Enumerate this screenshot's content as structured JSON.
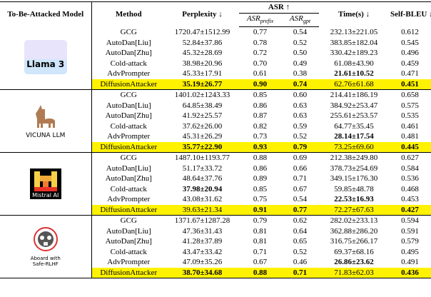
{
  "header": {
    "model": "To-Be-Attacked Model",
    "method": "Method",
    "perplexity": "Perplexity ↓",
    "asr": "ASR ↑",
    "asr_prefix": {
      "main": "ASR",
      "sub": "prefix"
    },
    "asr_gpt": {
      "main": "ASR",
      "sub": "gpt"
    },
    "time": "Time(s) ↓",
    "self_bleu": "Self-BLEU ↓"
  },
  "highlight_color": "#fff200",
  "groups": [
    {
      "logo_text": [
        "Llama 3"
      ],
      "rows": [
        {
          "cells": [
            "GCG",
            "1720.47±1512.99",
            "0.77",
            "0.54",
            "232.13±221.05",
            "0.612"
          ],
          "bold": []
        },
        {
          "cells": [
            "AutoDan[Liu]",
            "52.84±37.86",
            "0.78",
            "0.52",
            "383.85±182.04",
            "0.545"
          ],
          "bold": []
        },
        {
          "cells": [
            "AutoDan[Zhu]",
            "45.32±28.69",
            "0.72",
            "0.50",
            "330.42±189.23",
            "0.496"
          ],
          "bold": []
        },
        {
          "cells": [
            "Cold-attack",
            "38.98±20.96",
            "0.70",
            "0.49",
            "61.08±43.90",
            "0.459"
          ],
          "bold": []
        },
        {
          "cells": [
            "AdvPrompter",
            "45.33±17.91",
            "0.61",
            "0.38",
            "21.61±10.52",
            "0.471"
          ],
          "bold": [
            4
          ]
        },
        {
          "cells": [
            "DiffusionAttacker",
            "35.19±26.77",
            "0.90",
            "0.74",
            "62.76±61.68",
            "0.451"
          ],
          "bold": [
            1,
            2,
            3,
            5
          ],
          "highlight": true
        }
      ]
    },
    {
      "logo_text": [
        "VICUNA LLM"
      ],
      "rows": [
        {
          "cells": [
            "GCG",
            "1401.02±1243.33",
            "0.85",
            "0.60",
            "214.41±186.19",
            "0.658"
          ],
          "bold": []
        },
        {
          "cells": [
            "AutoDan[Liu]",
            "64.85±38.49",
            "0.86",
            "0.63",
            "384.92±253.47",
            "0.575"
          ],
          "bold": []
        },
        {
          "cells": [
            "AutoDan[Zhu]",
            "41.92±25.57",
            "0.87",
            "0.63",
            "255.61±253.57",
            "0.535"
          ],
          "bold": []
        },
        {
          "cells": [
            "Cold-attack",
            "37.62±26.00",
            "0.82",
            "0.59",
            "64.77±35.45",
            "0.461"
          ],
          "bold": []
        },
        {
          "cells": [
            "AdvPrompter",
            "45.31±26.29",
            "0.73",
            "0.52",
            "28.14±17.54",
            "0.481"
          ],
          "bold": [
            4
          ]
        },
        {
          "cells": [
            "DiffusionAttacker",
            "35.77±22.90",
            "0.93",
            "0.79",
            "73.25±69.60",
            "0.445"
          ],
          "bold": [
            1,
            2,
            3,
            5
          ],
          "highlight": true
        }
      ]
    },
    {
      "logo_text": [
        "Mistral AI"
      ],
      "rows": [
        {
          "cells": [
            "GCG",
            "1487.10±1193.77",
            "0.88",
            "0.69",
            "212.38±249.80",
            "0.627"
          ],
          "bold": []
        },
        {
          "cells": [
            "AutoDan[Liu]",
            "51.17±33.72",
            "0.86",
            "0.66",
            "378.73±254.69",
            "0.584"
          ],
          "bold": []
        },
        {
          "cells": [
            "AutoDan[Zhu]",
            "48.64±37.76",
            "0.89",
            "0.71",
            "349.15±176.30",
            "0.536"
          ],
          "bold": []
        },
        {
          "cells": [
            "Cold-attack",
            "37.98±20.94",
            "0.85",
            "0.67",
            "59.85±48.78",
            "0.468"
          ],
          "bold": [
            1
          ]
        },
        {
          "cells": [
            "AdvPrompter",
            "43.08±31.62",
            "0.75",
            "0.54",
            "22.53±16.93",
            "0.453"
          ],
          "bold": [
            4
          ]
        },
        {
          "cells": [
            "DiffusionAttacker",
            "39.63±21.34",
            "0.91",
            "0.77",
            "72.27±67.63",
            "0.427"
          ],
          "bold": [
            2,
            3,
            5
          ],
          "highlight": true
        }
      ]
    },
    {
      "logo_text": [
        "Aboard with",
        "Safe-RLHF"
      ],
      "rows": [
        {
          "cells": [
            "GCG",
            "1371.67±1287.28",
            "0.79",
            "0.62",
            "282.02±233.13",
            "0.594"
          ],
          "bold": []
        },
        {
          "cells": [
            "AutoDan[Liu]",
            "47.36±31.43",
            "0.81",
            "0.64",
            "362.88±286.20",
            "0.591"
          ],
          "bold": []
        },
        {
          "cells": [
            "AutoDan[Zhu]",
            "41.28±37.89",
            "0.81",
            "0.65",
            "316.75±266.17",
            "0.579"
          ],
          "bold": []
        },
        {
          "cells": [
            "Cold-attack",
            "43.47±33.42",
            "0.71",
            "0.52",
            "69.37±68.16",
            "0.495"
          ],
          "bold": []
        },
        {
          "cells": [
            "AdvPrompter",
            "47.09±35.26",
            "0.67",
            "0.46",
            "26.86±23.62",
            "0.491"
          ],
          "bold": [
            4
          ]
        },
        {
          "cells": [
            "DiffusionAttacker",
            "38.70±34.68",
            "0.88",
            "0.71",
            "71.83±62.03",
            "0.436"
          ],
          "bold": [
            1,
            2,
            3,
            5
          ],
          "highlight": true
        }
      ]
    }
  ]
}
